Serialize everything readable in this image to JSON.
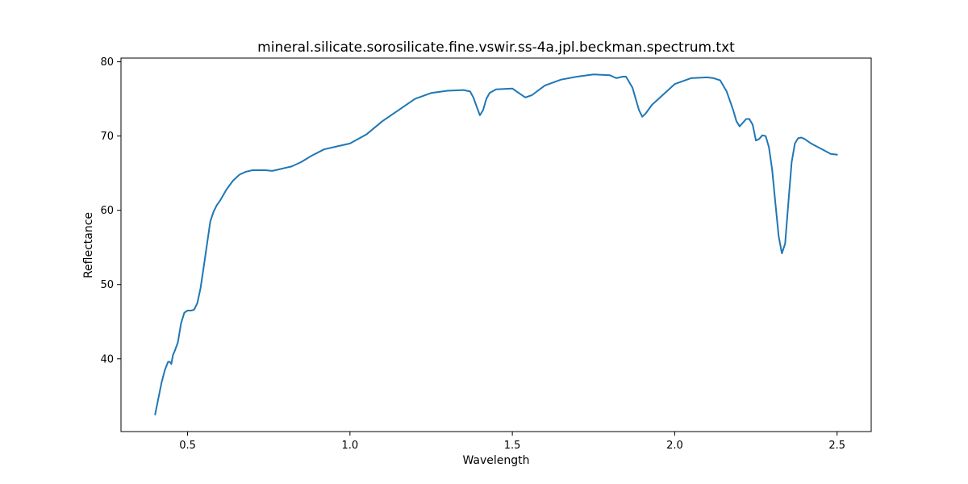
{
  "chart_data": {
    "type": "line",
    "title": "mineral.silicate.sorosilicate.fine.vswir.ss-4a.jpl.beckman.spectrum.txt",
    "xlabel": "Wavelength",
    "ylabel": "Reflectance",
    "xlim": [
      0.295,
      2.605
    ],
    "ylim": [
      30.2,
      80.5
    ],
    "xticks": [
      0.5,
      1.0,
      1.5,
      2.0,
      2.5
    ],
    "xtick_labels": [
      "0.5",
      "1.0",
      "1.5",
      "2.0",
      "2.5"
    ],
    "yticks": [
      40,
      50,
      60,
      70,
      80
    ],
    "ytick_labels": [
      "40",
      "50",
      "60",
      "70",
      "80"
    ],
    "grid": false,
    "legend": "none",
    "series": [
      {
        "color": "#1f77b4",
        "x": [
          0.4,
          0.42,
          0.43,
          0.44,
          0.445,
          0.45,
          0.455,
          0.46,
          0.47,
          0.48,
          0.49,
          0.5,
          0.51,
          0.52,
          0.53,
          0.54,
          0.55,
          0.56,
          0.57,
          0.58,
          0.59,
          0.6,
          0.62,
          0.64,
          0.66,
          0.68,
          0.7,
          0.72,
          0.74,
          0.76,
          0.78,
          0.8,
          0.82,
          0.85,
          0.88,
          0.92,
          0.96,
          1.0,
          1.05,
          1.1,
          1.15,
          1.2,
          1.25,
          1.3,
          1.35,
          1.37,
          1.38,
          1.39,
          1.4,
          1.41,
          1.42,
          1.43,
          1.45,
          1.5,
          1.52,
          1.54,
          1.56,
          1.6,
          1.65,
          1.7,
          1.75,
          1.8,
          1.82,
          1.84,
          1.85,
          1.87,
          1.89,
          1.9,
          1.91,
          1.93,
          1.95,
          2.0,
          2.05,
          2.1,
          2.12,
          2.14,
          2.16,
          2.18,
          2.19,
          2.2,
          2.22,
          2.23,
          2.24,
          2.25,
          2.26,
          2.27,
          2.28,
          2.29,
          2.3,
          2.31,
          2.32,
          2.33,
          2.34,
          2.35,
          2.36,
          2.37,
          2.38,
          2.39,
          2.4,
          2.42,
          2.45,
          2.48,
          2.5
        ],
        "y": [
          32.5,
          36.8,
          38.5,
          39.6,
          39.6,
          39.3,
          40.5,
          41.0,
          42.2,
          44.8,
          46.2,
          46.5,
          46.5,
          46.6,
          47.5,
          49.5,
          52.5,
          55.5,
          58.5,
          59.8,
          60.7,
          61.3,
          62.8,
          64.0,
          64.8,
          65.2,
          65.4,
          65.4,
          65.4,
          65.3,
          65.5,
          65.7,
          65.9,
          66.5,
          67.3,
          68.2,
          68.6,
          69.0,
          70.2,
          72.0,
          73.5,
          75.0,
          75.8,
          76.1,
          76.2,
          76.0,
          75.2,
          74.0,
          72.8,
          73.5,
          75.0,
          75.8,
          76.3,
          76.4,
          75.8,
          75.2,
          75.5,
          76.8,
          77.6,
          78.0,
          78.3,
          78.2,
          77.8,
          78.0,
          78.0,
          76.5,
          73.5,
          72.6,
          73.0,
          74.2,
          75.0,
          77.0,
          77.8,
          77.9,
          77.8,
          77.5,
          76.0,
          73.5,
          72.0,
          71.3,
          72.3,
          72.3,
          71.5,
          69.4,
          69.6,
          70.1,
          70.0,
          68.5,
          65.5,
          61.0,
          56.5,
          54.2,
          55.5,
          61.0,
          66.5,
          69.0,
          69.7,
          69.8,
          69.6,
          69.0,
          68.3,
          67.6,
          67.5
        ]
      }
    ]
  }
}
